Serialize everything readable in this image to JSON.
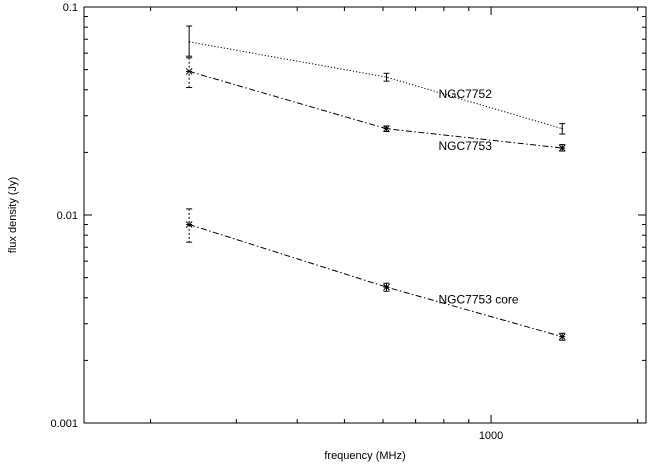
{
  "chart_data": {
    "type": "line",
    "title": "",
    "xlabel": "frequency (MHz)",
    "ylabel": "flux density (Jy)",
    "xscale": "log",
    "yscale": "log",
    "xlim": [
      146,
      2080
    ],
    "ylim": [
      0.001,
      0.1
    ],
    "x_ticks": [
      {
        "value": 1000,
        "label": "1000"
      }
    ],
    "y_ticks": [
      {
        "value": 0.001,
        "label": "0.001"
      },
      {
        "value": 0.01,
        "label": "0.01"
      },
      {
        "value": 0.1,
        "label": "0.1"
      }
    ],
    "grid": false,
    "legend": "none",
    "series": [
      {
        "name": "NGC7752",
        "line_style": "dotted",
        "marker": "errorbar",
        "x": [
          240,
          610,
          1400
        ],
        "y": [
          0.068,
          0.046,
          0.026
        ],
        "yerr_low": [
          0.058,
          0.044,
          0.0245
        ],
        "yerr_high": [
          0.081,
          0.048,
          0.0275
        ]
      },
      {
        "name": "NGC7753",
        "line_style": "dash-dot",
        "marker": "asterisk",
        "x": [
          240,
          610,
          1400
        ],
        "y": [
          0.049,
          0.026,
          0.021
        ],
        "yerr_low": [
          0.041,
          0.0252,
          0.0203
        ],
        "yerr_high": [
          0.057,
          0.0268,
          0.0218
        ]
      },
      {
        "name": "NGC7753 core",
        "line_style": "dash-dot",
        "marker": "asterisk",
        "x": [
          240,
          610,
          1400
        ],
        "y": [
          0.009,
          0.0045,
          0.0026
        ],
        "yerr_low": [
          0.0074,
          0.0043,
          0.0025
        ],
        "yerr_high": [
          0.0107,
          0.0047,
          0.0027
        ]
      }
    ]
  }
}
